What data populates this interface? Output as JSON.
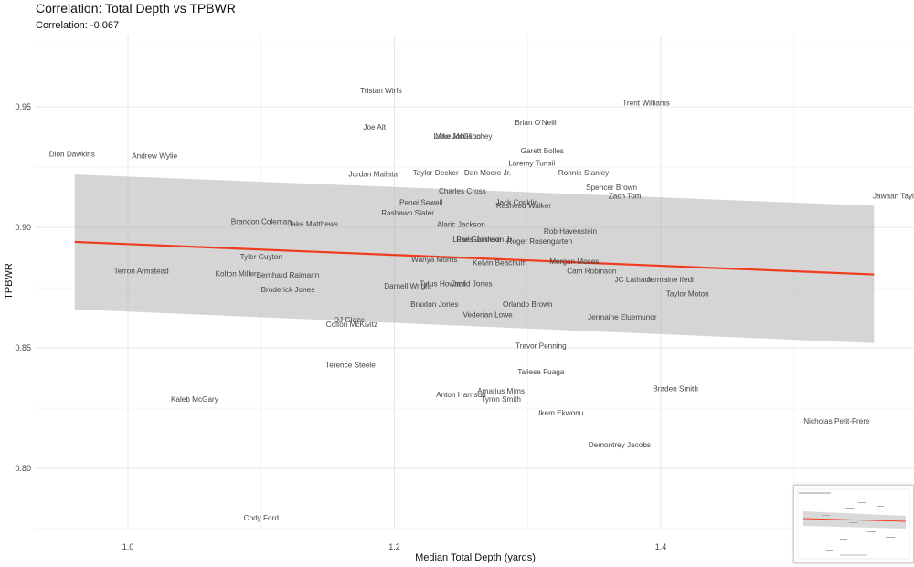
{
  "chart_data": {
    "type": "scatter",
    "title": "Correlation: Total Depth vs TPBWR",
    "subtitle": "Correlation: -0.067",
    "xlabel": "Median Total Depth (yards)",
    "ylabel": "TPBWR",
    "xlim": [
      0.93,
      1.59
    ],
    "ylim": [
      0.775,
      0.98
    ],
    "x_ticks": [
      1.0,
      1.2,
      1.4
    ],
    "y_ticks": [
      0.8,
      0.85,
      0.9,
      0.95
    ],
    "grid": true,
    "marker": "text-label",
    "trend": {
      "x": [
        0.96,
        1.56
      ],
      "y": [
        0.894,
        0.8805
      ],
      "color": "#f03c1e"
    },
    "band": {
      "x": [
        0.96,
        1.56
      ],
      "upper": [
        0.922,
        0.909
      ],
      "lower": [
        0.866,
        0.852
      ]
    },
    "points": [
      {
        "name": "Tristan Wirfs",
        "x": 1.19,
        "y": 0.9568
      },
      {
        "name": "Trent Williams",
        "x": 1.389,
        "y": 0.9518
      },
      {
        "name": "Brian O'Neill",
        "x": 1.306,
        "y": 0.9436
      },
      {
        "name": "Joe Alt",
        "x": 1.185,
        "y": 0.9418
      },
      {
        "name": "Lane Johnson",
        "x": 1.247,
        "y": 0.9379
      },
      {
        "name": "Mike McGlinchey",
        "x": 1.252,
        "y": 0.9379
      },
      {
        "name": "Garett Bolles",
        "x": 1.311,
        "y": 0.9318
      },
      {
        "name": "Dion Dawkins",
        "x": 0.958,
        "y": 0.9306
      },
      {
        "name": "Andrew Wylie",
        "x": 1.02,
        "y": 0.9297
      },
      {
        "name": "Laremy Tunsil",
        "x": 1.303,
        "y": 0.9267
      },
      {
        "name": "Jordan Mailata",
        "x": 1.184,
        "y": 0.9222
      },
      {
        "name": "Taylor Decker",
        "x": 1.231,
        "y": 0.9227
      },
      {
        "name": "Dan Moore Jr.",
        "x": 1.27,
        "y": 0.9227
      },
      {
        "name": "Ronnie Stanley",
        "x": 1.342,
        "y": 0.9227
      },
      {
        "name": "Spencer Brown",
        "x": 1.363,
        "y": 0.9167
      },
      {
        "name": "Charles Cross",
        "x": 1.251,
        "y": 0.9152
      },
      {
        "name": "Zach Tom",
        "x": 1.373,
        "y": 0.9131
      },
      {
        "name": "Jawaan Taylor",
        "x": 1.577,
        "y": 0.9131
      },
      {
        "name": "Penei Sewell",
        "x": 1.22,
        "y": 0.9104
      },
      {
        "name": "Jack Conklin",
        "x": 1.292,
        "y": 0.9104
      },
      {
        "name": "Rasheed Walker",
        "x": 1.297,
        "y": 0.9092
      },
      {
        "name": "Rashawn Slater",
        "x": 1.21,
        "y": 0.9062
      },
      {
        "name": "Brandon Coleman",
        "x": 1.1,
        "y": 0.9025
      },
      {
        "name": "Jake Matthews",
        "x": 1.139,
        "y": 0.9016
      },
      {
        "name": "Alaric Jackson",
        "x": 1.25,
        "y": 0.9013
      },
      {
        "name": "Rob Havenstein",
        "x": 1.332,
        "y": 0.8986
      },
      {
        "name": "Luke Goedeke",
        "x": 1.262,
        "y": 0.8952
      },
      {
        "name": "Paris Johnson Jr.",
        "x": 1.268,
        "y": 0.8952
      },
      {
        "name": "Roger Rosengarten",
        "x": 1.309,
        "y": 0.8943
      },
      {
        "name": "Tyler Guyton",
        "x": 1.1,
        "y": 0.8879
      },
      {
        "name": "Wanya Morris",
        "x": 1.23,
        "y": 0.8867
      },
      {
        "name": "Kelvin Beachum",
        "x": 1.279,
        "y": 0.8855
      },
      {
        "name": "Morgan Moses",
        "x": 1.335,
        "y": 0.8861
      },
      {
        "name": "Terron Armstead",
        "x": 1.01,
        "y": 0.8821
      },
      {
        "name": "Cam Robinson",
        "x": 1.348,
        "y": 0.8821
      },
      {
        "name": "Kolton Miller",
        "x": 1.081,
        "y": 0.8809
      },
      {
        "name": "Bernhard Raimann",
        "x": 1.12,
        "y": 0.8803
      },
      {
        "name": "JC Latham",
        "x": 1.379,
        "y": 0.8785
      },
      {
        "name": "Jermaine Ifedi",
        "x": 1.407,
        "y": 0.8785
      },
      {
        "name": "Tytus Howard",
        "x": 1.236,
        "y": 0.8767
      },
      {
        "name": "David Jones",
        "x": 1.258,
        "y": 0.8767
      },
      {
        "name": "Darnell Wright",
        "x": 1.21,
        "y": 0.8758
      },
      {
        "name": "Broderick Jones",
        "x": 1.12,
        "y": 0.8743
      },
      {
        "name": "Taylor Moton",
        "x": 1.42,
        "y": 0.8725
      },
      {
        "name": "Braxton Jones",
        "x": 1.23,
        "y": 0.8683
      },
      {
        "name": "Orlando Brown",
        "x": 1.3,
        "y": 0.8683
      },
      {
        "name": "Vederian Lowe",
        "x": 1.27,
        "y": 0.8638
      },
      {
        "name": "Jermaine Eluemunor",
        "x": 1.371,
        "y": 0.8629
      },
      {
        "name": "DJ Glaze",
        "x": 1.166,
        "y": 0.8617
      },
      {
        "name": "Colton McKivitz",
        "x": 1.168,
        "y": 0.8599
      },
      {
        "name": "Trevor Penning",
        "x": 1.31,
        "y": 0.8509
      },
      {
        "name": "Terence Steele",
        "x": 1.167,
        "y": 0.8431
      },
      {
        "name": "Taliese Fuaga",
        "x": 1.31,
        "y": 0.8401
      },
      {
        "name": "Amarius Mims",
        "x": 1.28,
        "y": 0.8322
      },
      {
        "name": "Braden Smith",
        "x": 1.411,
        "y": 0.8331
      },
      {
        "name": "Anton Harrison",
        "x": 1.25,
        "y": 0.8307
      },
      {
        "name": "Tyron Smith",
        "x": 1.28,
        "y": 0.8289
      },
      {
        "name": "Kaleb McGary",
        "x": 1.05,
        "y": 0.8289
      },
      {
        "name": "Ikem Ekwonu",
        "x": 1.325,
        "y": 0.8232
      },
      {
        "name": "Nicholas Petit-Frere",
        "x": 1.532,
        "y": 0.8198
      },
      {
        "name": "Demontrey Jacobs",
        "x": 1.369,
        "y": 0.8099
      },
      {
        "name": "Cody Ford",
        "x": 1.1,
        "y": 0.7796
      }
    ]
  },
  "thumbnail": {
    "icon": "chart-thumbnail-preview"
  }
}
